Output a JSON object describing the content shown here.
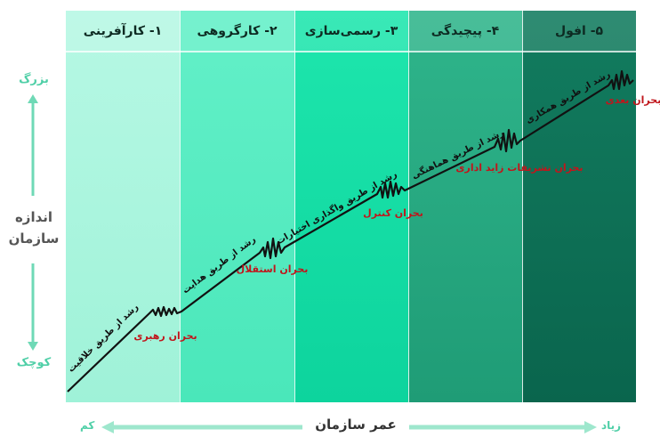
{
  "phases": [
    {
      "label": "۱- کارآفرینی",
      "color": "#aef7e0"
    },
    {
      "label": "۲- کارگروهی",
      "color": "#55eec2"
    },
    {
      "label": "۳- رسمی‌سازی",
      "color": "#12e0a6"
    },
    {
      "label": "۴- پیچیدگی",
      "color": "#25a980"
    },
    {
      "label": "۵- افول",
      "color": "#0c6f55"
    }
  ],
  "growth_labels": [
    "رشد از طریق خلاقیت",
    "رشد از طریق هدایت",
    "رشد از طریق واگذاری اختیارات",
    "رشد از طریق هماهنگی",
    "رشد از طریق همکاری"
  ],
  "crisis_labels": [
    "بحران رهبری",
    "بحران استقلال",
    "بحران کنترل",
    "بحران تشریفات زاید اداری",
    "بحران بعدی"
  ],
  "y_axis": {
    "title_line1": "اندازه",
    "title_line2": "سازمان",
    "top": "بزرگ",
    "bottom": "کوچک"
  },
  "x_axis": {
    "title": "عمر سازمان",
    "left": "کم",
    "right": "زیاد"
  },
  "colors": {
    "axis_accent": "#4fcfa7",
    "crisis": "#c0161c",
    "curve": "#111111"
  }
}
